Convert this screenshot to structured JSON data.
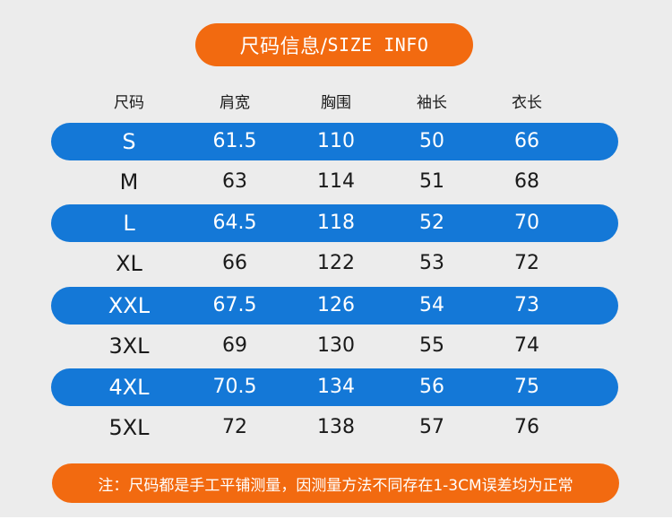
{
  "title": {
    "zh": "尺码信息/",
    "en": "SIZE INFO"
  },
  "columns": [
    "尺码",
    "肩宽",
    "胸围",
    "袖长",
    "衣长"
  ],
  "rows": [
    {
      "size": "S",
      "shoulder": "61.5",
      "chest": "110",
      "sleeve": "50",
      "length": "66"
    },
    {
      "size": "M",
      "shoulder": "63",
      "chest": "114",
      "sleeve": "51",
      "length": "68"
    },
    {
      "size": "L",
      "shoulder": "64.5",
      "chest": "118",
      "sleeve": "52",
      "length": "70"
    },
    {
      "size": "XL",
      "shoulder": "66",
      "chest": "122",
      "sleeve": "53",
      "length": "72"
    },
    {
      "size": "XXL",
      "shoulder": "67.5",
      "chest": "126",
      "sleeve": "54",
      "length": "73"
    },
    {
      "size": "3XL",
      "shoulder": "69",
      "chest": "130",
      "sleeve": "55",
      "length": "74"
    },
    {
      "size": "4XL",
      "shoulder": "70.5",
      "chest": "134",
      "sleeve": "56",
      "length": "75"
    },
    {
      "size": "5XL",
      "shoulder": "72",
      "chest": "138",
      "sleeve": "57",
      "length": "76"
    }
  ],
  "note": "注：尺码都是手工平铺测量，因测量方法不同存在1-3CM误差均为正常",
  "colors": {
    "accent_orange": "#f26a10",
    "band_blue": "#1478d7",
    "background": "#ececec"
  }
}
